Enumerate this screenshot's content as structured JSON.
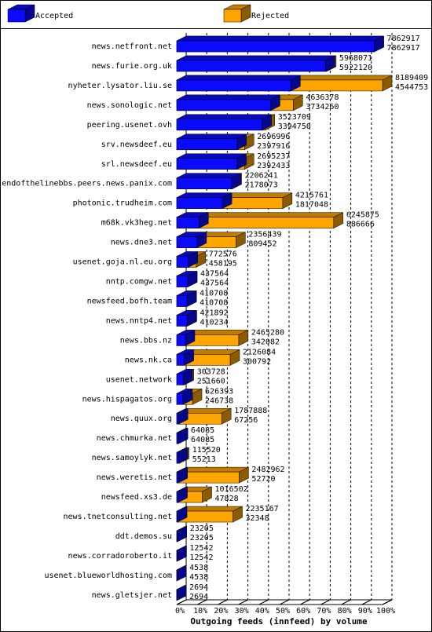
{
  "chart_data": {
    "type": "bar3d",
    "title": "Outgoing feeds (innfeed) by volume",
    "categories": [
      "news.netfront.net",
      "news.furie.org.uk",
      "nyheter.lysator.liu.se",
      "news.sonologic.net",
      "peering.usenet.ovh",
      "srv.newsdeef.eu",
      "srl.newsdeef.eu",
      "endofthelinebbs.peers.news.panix.com",
      "photonic.trudheim.com",
      "m68k.vk3heg.net",
      "news.dne3.net",
      "usenet.goja.nl.eu.org",
      "nntp.comgw.net",
      "newsfeed.bofh.team",
      "news.nntp4.net",
      "news.bbs.nz",
      "news.nk.ca",
      "usenet.network",
      "news.hispagatos.org",
      "news.quux.org",
      "news.chmurka.net",
      "news.samoylyk.net",
      "news.weretis.net",
      "newsfeed.xs3.de",
      "news.tnetconsulting.net",
      "ddt.demos.su",
      "news.corradoroberto.it",
      "usenet.blueworldhosting.com",
      "news.gletsjer.net"
    ],
    "totals": [
      7862917,
      5968071,
      8189409,
      4636378,
      3523709,
      2696996,
      2695237,
      2206241,
      4215761,
      6245875,
      2356439,
      772576,
      437564,
      410708,
      421892,
      2465280,
      2126084,
      303728,
      626393,
      1787888,
      64085,
      115520,
      2482962,
      1016502,
      2235167,
      23205,
      12542,
      4538,
      2694
    ],
    "series": [
      {
        "name": "Accepted",
        "color": "#0a0aff",
        "values": [
          7862917,
          5922120,
          4544753,
          3734260,
          3394750,
          2397916,
          2392433,
          2178073,
          1817048,
          886666,
          809452,
          458195,
          437564,
          410708,
          410234,
          342082,
          300792,
          251660,
          246738,
          67256,
          64085,
          55213,
          52720,
          47828,
          32348,
          23205,
          12542,
          4538,
          2694
        ]
      },
      {
        "name": "Rejected",
        "color": "#ffa500"
      }
    ],
    "xlim": [
      0,
      8189409
    ],
    "xticks": [
      {
        "value": 0,
        "label": "0%"
      },
      {
        "value": 818940.9,
        "label": "10%"
      },
      {
        "value": 1637881.8,
        "label": "20%"
      },
      {
        "value": 2456822.7,
        "label": "30%"
      },
      {
        "value": 3275763.6,
        "label": "40%"
      },
      {
        "value": 4094704.5,
        "label": "50%"
      },
      {
        "value": 4913645.4,
        "label": "60%"
      },
      {
        "value": 5732586.3,
        "label": "70%"
      },
      {
        "value": 6551527.2,
        "label": "80%"
      },
      {
        "value": 7370468.1,
        "label": "90%"
      },
      {
        "value": 8189409,
        "label": "100%"
      }
    ],
    "grid": true
  }
}
